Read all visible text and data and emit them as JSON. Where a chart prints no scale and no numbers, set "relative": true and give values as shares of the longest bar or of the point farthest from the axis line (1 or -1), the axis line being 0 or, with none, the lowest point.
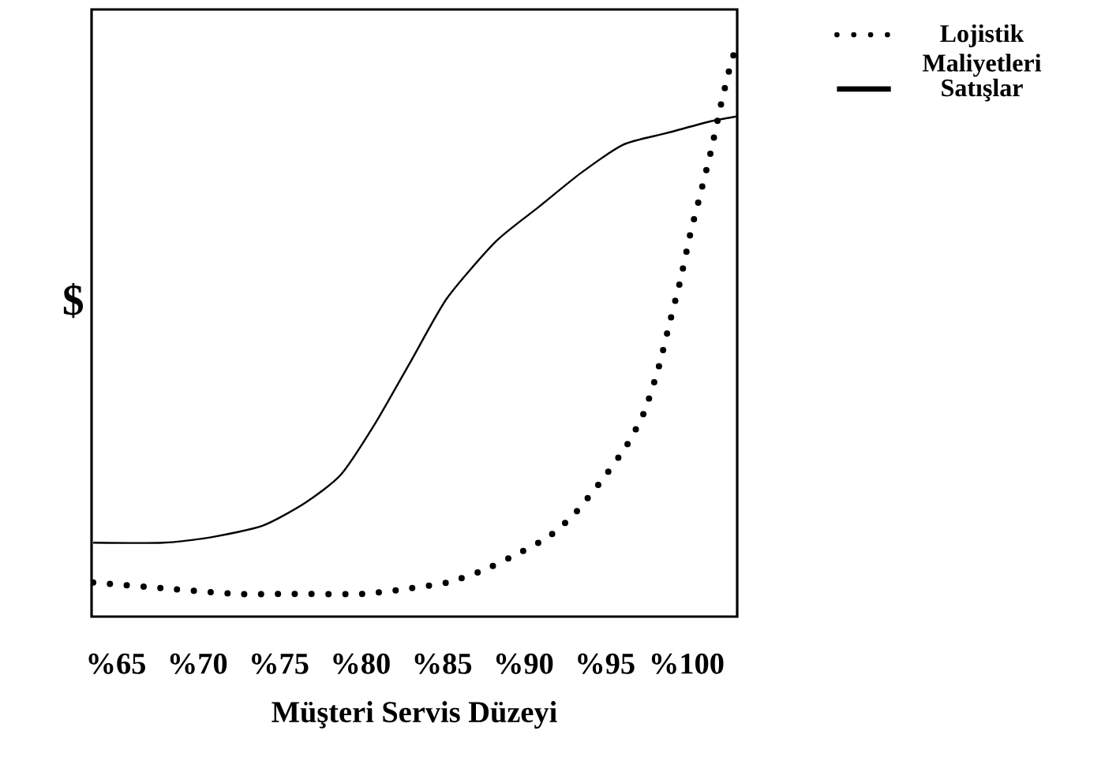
{
  "chart_data": {
    "type": "line",
    "relative": true,
    "xlabel": "Müşteri Servis Düzeyi",
    "ylabel": "$",
    "xlim": [
      63.5,
      103.1
    ],
    "xticks": [
      {
        "value": 65,
        "label": "%65"
      },
      {
        "value": 70,
        "label": "%70"
      },
      {
        "value": 75,
        "label": "%75"
      },
      {
        "value": 80,
        "label": "%80"
      },
      {
        "value": 85,
        "label": "%85"
      },
      {
        "value": 90,
        "label": "%90"
      },
      {
        "value": 95,
        "label": "%95"
      },
      {
        "value": 100,
        "label": "%100"
      }
    ],
    "legend": "top right",
    "grid": false,
    "series": [
      {
        "name": "Lojistik Maliyetleri",
        "color": "#000000",
        "line_style": "dotted",
        "x": [
          63.6,
          67.9,
          72.3,
          75.7,
          80.1,
          83.1,
          85.3,
          87.4,
          89.6,
          91.5,
          93.1,
          94.8,
          96.3,
          97.4,
          98.3,
          98.9,
          99.6,
          100.2,
          100.9,
          101.5,
          102.1,
          102.6,
          103.0
        ],
        "values": [
          0.06,
          0.05,
          0.04,
          0.04,
          0.04,
          0.05,
          0.06,
          0.08,
          0.11,
          0.14,
          0.18,
          0.24,
          0.3,
          0.36,
          0.44,
          0.51,
          0.59,
          0.67,
          0.75,
          0.82,
          0.9,
          0.96,
          1.0
        ]
      },
      {
        "name": "Satışlar",
        "color": "#000000",
        "line_style": "solid",
        "x": [
          63.6,
          67.9,
          70.9,
          74.0,
          76.6,
          78.8,
          80.9,
          83.1,
          85.3,
          88.3,
          90.9,
          93.5,
          96.1,
          98.7,
          101.3,
          103.1
        ],
        "values": [
          0.13,
          0.13,
          0.14,
          0.16,
          0.2,
          0.25,
          0.34,
          0.45,
          0.56,
          0.66,
          0.72,
          0.78,
          0.83,
          0.85,
          0.87,
          0.88
        ]
      }
    ]
  }
}
